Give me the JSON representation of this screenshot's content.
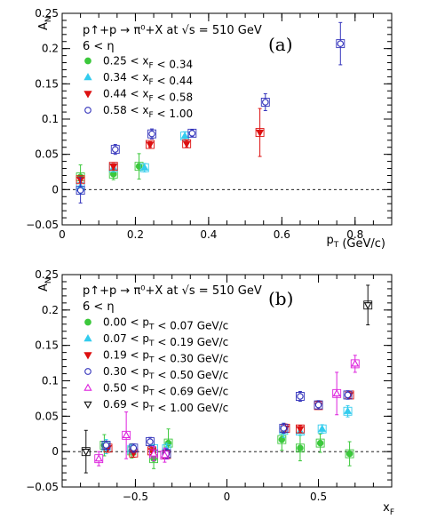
{
  "chart_data": [
    {
      "type": "scatter",
      "panel": "(a)",
      "header": [
        "p↑+p → π⁰+X at √s = 510 GeV",
        "6 < η"
      ],
      "xlabel": "p_T (GeV/c)",
      "ylabel": "A_N",
      "xlim": [
        0,
        0.9
      ],
      "ylim": [
        -0.05,
        0.25
      ],
      "xticks": [
        "0",
        "0.2",
        "0.4",
        "0.6",
        "0.8"
      ],
      "yticks": [
        "−0.05",
        "0",
        "0.05",
        "0.1",
        "0.15",
        "0.2",
        "0.25"
      ],
      "legend_position": "top-left",
      "series": [
        {
          "name": "0.25 < x_F < 0.34",
          "marker": "circle-filled",
          "color": "#3cc83c",
          "points": [
            {
              "x": 0.05,
              "y": 0.018,
              "err": 0.017
            },
            {
              "x": 0.14,
              "y": 0.022,
              "err": 0.008
            },
            {
              "x": 0.21,
              "y": 0.033,
              "err": 0.018
            }
          ]
        },
        {
          "name": "0.34 < x_F < 0.44",
          "marker": "triangle-up-filled",
          "color": "#33ccee",
          "points": [
            {
              "x": 0.05,
              "y": 0.004,
              "err": 0.01
            },
            {
              "x": 0.14,
              "y": 0.031,
              "err": 0.006
            },
            {
              "x": 0.225,
              "y": 0.031,
              "err": 0.006
            },
            {
              "x": 0.335,
              "y": 0.076,
              "err": 0.006
            }
          ]
        },
        {
          "name": "0.44 < x_F < 0.58",
          "marker": "triangle-down-filled",
          "color": "#dd1111",
          "points": [
            {
              "x": 0.05,
              "y": 0.014,
              "err": 0.004
            },
            {
              "x": 0.14,
              "y": 0.033,
              "err": 0.004
            },
            {
              "x": 0.24,
              "y": 0.064,
              "err": 0.004
            },
            {
              "x": 0.34,
              "y": 0.065,
              "err": 0.005
            },
            {
              "x": 0.54,
              "y": 0.081,
              "err": 0.034
            }
          ]
        },
        {
          "name": "0.58 < x_F < 1.00",
          "marker": "circle-open",
          "color": "#3333bb",
          "points": [
            {
              "x": 0.05,
              "y": -0.001,
              "err": 0.018
            },
            {
              "x": 0.145,
              "y": 0.057,
              "err": 0.007
            },
            {
              "x": 0.245,
              "y": 0.079,
              "err": 0.007
            },
            {
              "x": 0.355,
              "y": 0.08,
              "err": 0.005
            },
            {
              "x": 0.555,
              "y": 0.124,
              "err": 0.012
            },
            {
              "x": 0.76,
              "y": 0.207,
              "err": 0.03
            }
          ]
        }
      ]
    },
    {
      "type": "scatter",
      "panel": "(b)",
      "header": [
        "p↑+p → π⁰+X at √s = 510 GeV",
        "6 < η"
      ],
      "xlabel": "x_F",
      "ylabel": "A_N",
      "xlim": [
        -0.9,
        0.9
      ],
      "ylim": [
        -0.05,
        0.25
      ],
      "xticks": [
        "−0.5",
        "0",
        "0.5"
      ],
      "yticks": [
        "−0.05",
        "0",
        "0.05",
        "0.1",
        "0.15",
        "0.2",
        "0.25"
      ],
      "legend_position": "top-left",
      "series": [
        {
          "name": "0.00 < p_T < 0.07 GeV/c",
          "marker": "circle-filled",
          "color": "#3cc83c",
          "points": [
            {
              "x": -0.67,
              "y": 0.009,
              "err": 0.015
            },
            {
              "x": -0.52,
              "y": 0.001,
              "err": 0.01
            },
            {
              "x": -0.4,
              "y": -0.01,
              "err": 0.014
            },
            {
              "x": -0.32,
              "y": 0.012,
              "err": 0.02
            },
            {
              "x": 0.3,
              "y": 0.017,
              "err": 0.015
            },
            {
              "x": 0.4,
              "y": 0.005,
              "err": 0.018
            },
            {
              "x": 0.51,
              "y": 0.012,
              "err": 0.013
            },
            {
              "x": 0.67,
              "y": -0.003,
              "err": 0.017
            }
          ]
        },
        {
          "name": "0.07 < p_T < 0.19 GeV/c",
          "marker": "triangle-up-filled",
          "color": "#33ccee",
          "points": [
            {
              "x": -0.66,
              "y": 0.007,
              "err": 0.01
            },
            {
              "x": -0.52,
              "y": 0.003,
              "err": 0.006
            },
            {
              "x": -0.4,
              "y": 0.004,
              "err": 0.006
            },
            {
              "x": -0.33,
              "y": 0.004,
              "err": 0.008
            },
            {
              "x": 0.31,
              "y": 0.03,
              "err": 0.01
            },
            {
              "x": 0.4,
              "y": 0.029,
              "err": 0.006
            },
            {
              "x": 0.52,
              "y": 0.032,
              "err": 0.006
            },
            {
              "x": 0.66,
              "y": 0.057,
              "err": 0.008
            }
          ]
        },
        {
          "name": "0.19 < p_T < 0.30 GeV/c",
          "marker": "triangle-down-filled",
          "color": "#dd1111",
          "points": [
            {
              "x": -0.65,
              "y": 0.005,
              "err": 0.006
            },
            {
              "x": -0.51,
              "y": -0.002,
              "err": 0.006
            },
            {
              "x": -0.41,
              "y": 0.001,
              "err": 0.005
            },
            {
              "x": -0.33,
              "y": -0.004,
              "err": 0.006
            },
            {
              "x": 0.32,
              "y": 0.033,
              "err": 0.006
            },
            {
              "x": 0.4,
              "y": 0.032,
              "err": 0.005
            },
            {
              "x": 0.5,
              "y": 0.065,
              "err": 0.005
            },
            {
              "x": 0.67,
              "y": 0.08,
              "err": 0.005
            }
          ]
        },
        {
          "name": "0.30 < p_T < 0.50 GeV/c",
          "marker": "circle-open",
          "color": "#3333bb",
          "points": [
            {
              "x": -0.66,
              "y": 0.009,
              "err": 0.006
            },
            {
              "x": -0.51,
              "y": 0.005,
              "err": 0.006
            },
            {
              "x": -0.42,
              "y": 0.014,
              "err": 0.006
            },
            {
              "x": -0.33,
              "y": -0.003,
              "err": 0.007
            },
            {
              "x": 0.31,
              "y": 0.033,
              "err": 0.007
            },
            {
              "x": 0.4,
              "y": 0.078,
              "err": 0.007
            },
            {
              "x": 0.5,
              "y": 0.066,
              "err": 0.006
            },
            {
              "x": 0.66,
              "y": 0.08,
              "err": 0.006
            }
          ]
        },
        {
          "name": "0.50 < p_T < 0.69 GeV/c",
          "marker": "triangle-up-open",
          "color": "#dd22dd",
          "points": [
            {
              "x": -0.7,
              "y": -0.01,
              "err": 0.01
            },
            {
              "x": -0.55,
              "y": 0.023,
              "err": 0.033
            },
            {
              "x": -0.4,
              "y": -0.003,
              "err": 0.01
            },
            {
              "x": -0.34,
              "y": -0.005,
              "err": 0.01
            },
            {
              "x": 0.6,
              "y": 0.082,
              "err": 0.03
            },
            {
              "x": 0.7,
              "y": 0.124,
              "err": 0.012
            }
          ]
        },
        {
          "name": "0.69 < p_T < 1.00 GeV/c",
          "marker": "triangle-down-open",
          "color": "#111111",
          "points": [
            {
              "x": -0.77,
              "y": 0.0,
              "err": 0.03
            },
            {
              "x": 0.77,
              "y": 0.207,
              "err": 0.028
            }
          ]
        }
      ]
    }
  ]
}
